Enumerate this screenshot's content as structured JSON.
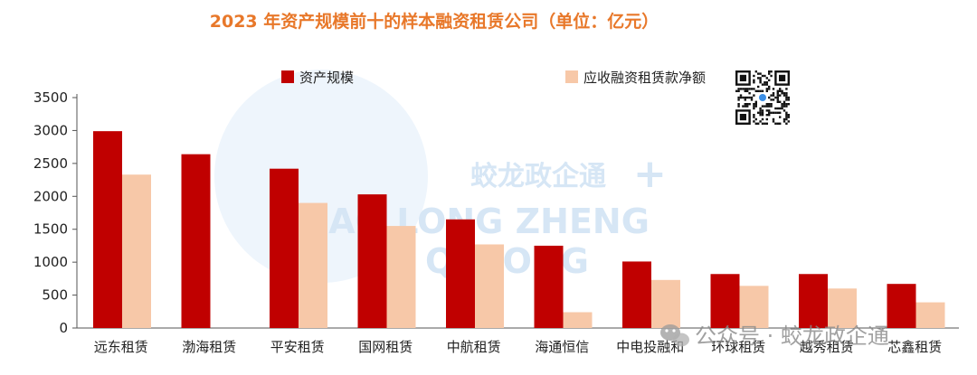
{
  "colors": {
    "title": "#e8782a",
    "series_asset": "#c00000",
    "series_receivable": "#f7c8a8",
    "axis": "#555555",
    "watermark": "#d6e6f5"
  },
  "watermark": {
    "cn": "蛟龙政企通",
    "en_line1": "JIAO LONG ZHENG",
    "en_line2": "QI TONG",
    "wechat": "公众号 · 蛟龙政企通",
    "wechat_icon": "wechat-icon",
    "qr_icon": "qr-code-icon"
  },
  "chart_data": {
    "type": "bar",
    "title": "2023 年资产规模前十的样本融资租赁公司（单位：亿元）",
    "categories": [
      "远东租赁",
      "渤海租赁",
      "平安租赁",
      "国网租赁",
      "中航租赁",
      "海通恒信",
      "中电投融和",
      "环球租赁",
      "越秀租赁",
      "芯鑫租赁"
    ],
    "series": [
      {
        "name": "资产规模",
        "values": [
          2990,
          2640,
          2420,
          2030,
          1650,
          1250,
          1010,
          820,
          820,
          670
        ]
      },
      {
        "name": "应收融资租赁款净额",
        "values": [
          2330,
          null,
          1900,
          1550,
          1270,
          240,
          730,
          640,
          600,
          390
        ]
      }
    ],
    "yticks": [
      0,
      500,
      1000,
      1500,
      2000,
      2500,
      3000,
      3500
    ],
    "ylim": [
      0,
      3500
    ],
    "grid": false,
    "legend": "top"
  }
}
